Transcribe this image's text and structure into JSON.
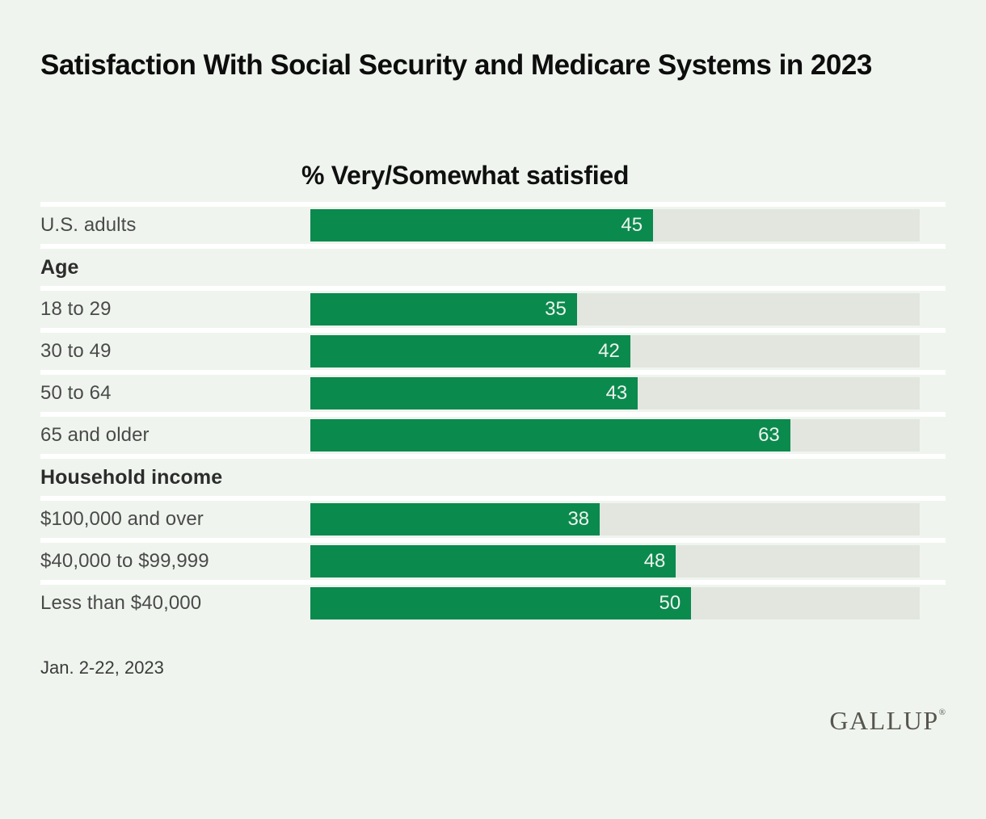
{
  "title": "Satisfaction With Social Security and Medicare Systems in 2023",
  "chart_data": {
    "type": "bar",
    "orientation": "horizontal",
    "column_header": "% Very/Somewhat satisfied",
    "unit": "% Very/Somewhat satisfied",
    "xlim": [
      0,
      80
    ],
    "grid": false,
    "value_labels": "inside-end",
    "rows": [
      {
        "kind": "data",
        "label": "U.S. adults",
        "value": 45
      },
      {
        "kind": "section",
        "label": "Age"
      },
      {
        "kind": "data",
        "label": "18 to 29",
        "value": 35
      },
      {
        "kind": "data",
        "label": "30 to 49",
        "value": 42
      },
      {
        "kind": "data",
        "label": "50 to 64",
        "value": 43
      },
      {
        "kind": "data",
        "label": "65 and older",
        "value": 63
      },
      {
        "kind": "section",
        "label": "Household income"
      },
      {
        "kind": "data",
        "label": "$100,000 and over",
        "value": 38
      },
      {
        "kind": "data",
        "label": "$40,000 to $99,999",
        "value": 48
      },
      {
        "kind": "data",
        "label": "Less than $40,000",
        "value": 50
      }
    ],
    "colors": {
      "bar_fill": "#0b8a4e",
      "bar_track": "#e2e6df",
      "background": "#eff5ee",
      "separator": "#ffffff",
      "value_text": "#eef3ee"
    }
  },
  "footer": {
    "date": "Jan. 2-22, 2023",
    "brand": "GALLUP",
    "registered_mark": "®"
  }
}
